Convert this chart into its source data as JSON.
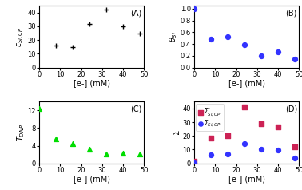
{
  "panel_A": {
    "label": "(A)",
    "x": [
      8,
      16,
      24,
      32,
      40,
      48
    ],
    "y": [
      16,
      15,
      32,
      42,
      30,
      25
    ],
    "color": "#000000",
    "marker": "P",
    "ylabel": "$\\varepsilon_{Si,CP}$",
    "xlabel": "[e-] (mM)",
    "xlim": [
      0,
      50
    ],
    "ylim": [
      0,
      45
    ],
    "yticks": [
      0,
      10,
      20,
      30,
      40
    ],
    "xticks": [
      0,
      10,
      20,
      30,
      40,
      50
    ]
  },
  "panel_B": {
    "label": "(B)",
    "x": [
      0,
      8,
      16,
      24,
      32,
      40,
      48
    ],
    "y": [
      1.0,
      0.48,
      0.52,
      0.39,
      0.2,
      0.26,
      0.15
    ],
    "color": "#3333ff",
    "marker": "o",
    "ylabel": "$\\theta_{Si}$",
    "xlabel": "[e-] (mM)",
    "xlim": [
      0,
      50
    ],
    "ylim": [
      0,
      1.05
    ],
    "yticks": [
      0,
      0.2,
      0.4,
      0.6,
      0.8,
      1.0
    ],
    "xticks": [
      0,
      10,
      20,
      30,
      40,
      50
    ]
  },
  "panel_C": {
    "label": "(C)",
    "x": [
      0,
      8,
      16,
      24,
      32,
      40,
      48
    ],
    "y": [
      12.5,
      5.5,
      4.5,
      3.2,
      2.2,
      2.3,
      2.2
    ],
    "color": "#00dd00",
    "marker": "^",
    "ylabel": "$T_{DNP}$",
    "xlabel": "[e-] (mM)",
    "xlim": [
      0,
      50
    ],
    "ylim": [
      0,
      14
    ],
    "yticks": [
      0,
      4,
      8,
      12
    ],
    "xticks": [
      0,
      10,
      20,
      30,
      40,
      50
    ]
  },
  "panel_D": {
    "label": "(D)",
    "x_sigma": [
      0,
      8,
      16,
      24,
      32,
      40,
      48
    ],
    "y_sigma": [
      0.5,
      6.0,
      6.5,
      14.5,
      10.0,
      9.5,
      4.0
    ],
    "x_sigma_dagger": [
      0,
      8,
      16,
      24,
      32,
      40,
      48
    ],
    "y_sigma_dagger": [
      1.5,
      18.5,
      20.0,
      41.0,
      29.0,
      26.5,
      12.0
    ],
    "color_sigma": "#3333ff",
    "color_sigma_dagger": "#cc2255",
    "marker_sigma": "o",
    "marker_sigma_dagger": "s",
    "ylabel": "$\\Sigma$",
    "xlabel": "[e-] (mM)",
    "xlim": [
      0,
      50
    ],
    "ylim": [
      0,
      45
    ],
    "yticks": [
      0,
      10,
      20,
      30,
      40
    ],
    "xticks": [
      0,
      10,
      20,
      30,
      40,
      50
    ],
    "legend_sigma_dagger": "$\\Sigma^{\\dagger}_{Si,CP}$",
    "legend_sigma": "$\\Sigma_{Si,CP}$"
  },
  "bg_color": "#ffffff"
}
